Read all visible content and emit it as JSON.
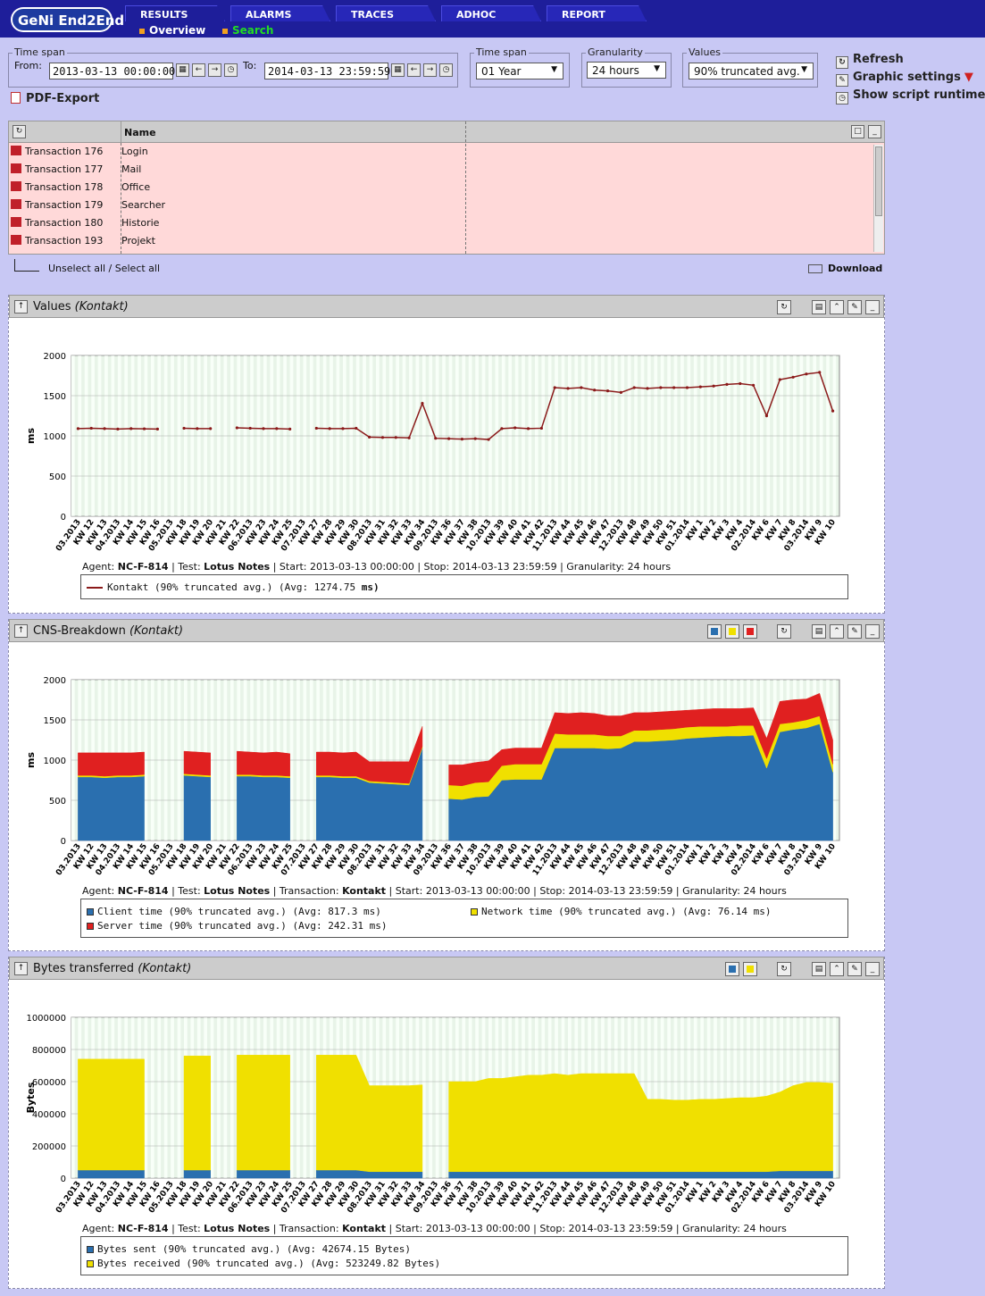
{
  "app": {
    "logo": "GeNi End2End"
  },
  "tabs": [
    {
      "label": "RESULTS",
      "active": true
    },
    {
      "label": "ALARMS"
    },
    {
      "label": "TRACES"
    },
    {
      "label": "ADHOC"
    },
    {
      "label": "REPORT"
    }
  ],
  "subnav": {
    "overview": "Overview",
    "search": "Search"
  },
  "filters": {
    "timespan_legend": "Time span",
    "from_label": "From:",
    "from_value": "2013-03-13 00:00:00",
    "to_label": "To:",
    "to_value": "2014-03-13 23:59:59",
    "timespan2_legend": "Time span",
    "timespan2_value": "01 Year",
    "granularity_legend": "Granularity",
    "granularity_value": "24 hours",
    "values_legend": "Values",
    "values_value": "90% truncated avg."
  },
  "actions": {
    "refresh": "Refresh",
    "graphic_settings": "Graphic settings",
    "show_runtime": "Show script runtime",
    "pdf_export": "PDF-Export"
  },
  "transactions": {
    "header_name": "Name",
    "rows": [
      {
        "id": "Transaction 176",
        "name": "Login"
      },
      {
        "id": "Transaction 177",
        "name": "Mail"
      },
      {
        "id": "Transaction 178",
        "name": "Office"
      },
      {
        "id": "Transaction 179",
        "name": "Searcher"
      },
      {
        "id": "Transaction 180",
        "name": "Historie"
      },
      {
        "id": "Transaction 193",
        "name": "Projekt"
      }
    ],
    "select_all": "Unselect all / Select all",
    "download": "Download"
  },
  "panels": {
    "values": {
      "title": "Values",
      "subtitle": "(Kontakt)"
    },
    "cns": {
      "title": "CNS-Breakdown",
      "subtitle": "(Kontakt)"
    },
    "bytes": {
      "title": "Bytes transferred",
      "subtitle": "(Kontakt)"
    }
  },
  "info": {
    "agent_label": "Agent:",
    "agent": "NC-F-814",
    "test_label": "| Test:",
    "test": "Lotus Notes",
    "tx_label": "| Transaction:",
    "tx": "Kontakt",
    "start_label": "| Start:",
    "start": "2013-03-13 00:00:00",
    "stop_label": "| Stop:",
    "stop": "2014-03-13 23:59:59",
    "gran_label": "| Granularity:",
    "gran": "24 hours"
  },
  "legends": {
    "values": [
      {
        "text": "Kontakt (90% truncated avg.) (Avg: 1274.75",
        "unit": "ms)",
        "color": "#8b1a1a"
      }
    ],
    "cns": [
      {
        "text": "Client time (90% truncated avg.) (Avg: 817.3 ms)",
        "color": "#2a6faf"
      },
      {
        "text": "Network time (90% truncated avg.) (Avg: 76.14 ms)",
        "color": "#f0e000"
      },
      {
        "text": "Server time (90% truncated avg.) (Avg: 242.31 ms)",
        "color": "#e02020"
      }
    ],
    "bytes": [
      {
        "text": "Bytes sent (90% truncated avg.) (Avg: 42674.15 Bytes)",
        "color": "#2a6faf"
      },
      {
        "text": "Bytes received (90% truncated avg.) (Avg: 523249.82 Bytes)",
        "color": "#f0e000"
      }
    ]
  },
  "chart_data": [
    {
      "type": "line",
      "ylabel": "ms",
      "ylim": [
        0,
        2000
      ],
      "yticks": [
        "0",
        "500",
        "1000",
        "1500",
        "2000"
      ],
      "xticks": [
        "03.2013",
        "KW 12",
        "KW 13",
        "04.2013",
        "KW 14",
        "KW 15",
        "KW 16",
        "05.2013",
        "KW 18",
        "KW 19",
        "KW 20",
        "KW 21",
        "KW 22",
        "06.2013",
        "KW 23",
        "KW 24",
        "KW 25",
        "07.2013",
        "KW 27",
        "KW 28",
        "KW 29",
        "KW 30",
        "08.2013",
        "KW 31",
        "KW 32",
        "KW 33",
        "KW 34",
        "09.2013",
        "KW 36",
        "KW 37",
        "KW 38",
        "10.2013",
        "KW 39",
        "KW 40",
        "KW 41",
        "KW 42",
        "11.2013",
        "KW 44",
        "KW 45",
        "KW 46",
        "KW 47",
        "12.2013",
        "KW 48",
        "KW 49",
        "KW 50",
        "KW 51",
        "01.2014",
        "KW 1",
        "KW 2",
        "KW 3",
        "KW 4",
        "02.2014",
        "KW 6",
        "KW 7",
        "KW 8",
        "03.2014",
        "KW 9",
        "KW 10"
      ],
      "series": [
        {
          "name": "Kontakt",
          "color": "#8b1a1a",
          "values": [
            1090,
            1095,
            1090,
            1085,
            1090,
            1088,
            1085,
            null,
            1095,
            1090,
            1090,
            null,
            1100,
            1095,
            1090,
            1090,
            1085,
            null,
            1095,
            1090,
            1090,
            1095,
            985,
            980,
            980,
            975,
            1405,
            970,
            965,
            960,
            965,
            955,
            1090,
            1100,
            1090,
            1095,
            1600,
            1590,
            1600,
            1570,
            1560,
            1540,
            1600,
            1590,
            1600,
            1600,
            1600,
            1610,
            1620,
            1640,
            1650,
            1630,
            1250,
            1700,
            1730,
            1770,
            1790,
            1310
          ]
        }
      ]
    },
    {
      "type": "area",
      "ylabel": "ms",
      "ylim": [
        0,
        2000
      ],
      "yticks": [
        "0",
        "500",
        "1000",
        "1500",
        "2000"
      ],
      "series": [
        {
          "name": "Client time",
          "color": "#2a6faf",
          "values": [
            790,
            790,
            780,
            790,
            790,
            800,
            null,
            null,
            810,
            800,
            790,
            null,
            800,
            800,
            790,
            790,
            780,
            null,
            790,
            790,
            780,
            780,
            720,
            710,
            700,
            690,
            1150,
            null,
            520,
            510,
            540,
            550,
            750,
            760,
            760,
            760,
            1150,
            1150,
            1150,
            1150,
            1140,
            1150,
            1230,
            1230,
            1240,
            1250,
            1270,
            1280,
            1290,
            1300,
            1300,
            1310,
            900,
            1350,
            1380,
            1400,
            1450,
            850
          ]
        },
        {
          "name": "Network time",
          "color": "#f0e000",
          "values": [
            20,
            20,
            20,
            20,
            20,
            20,
            null,
            null,
            20,
            20,
            20,
            null,
            20,
            20,
            20,
            20,
            20,
            null,
            20,
            20,
            20,
            20,
            20,
            20,
            20,
            20,
            20,
            null,
            170,
            170,
            180,
            180,
            180,
            190,
            190,
            190,
            180,
            170,
            170,
            170,
            160,
            150,
            140,
            140,
            140,
            140,
            140,
            140,
            130,
            120,
            130,
            120,
            120,
            100,
            90,
            100,
            100,
            100
          ]
        },
        {
          "name": "Server time",
          "color": "#e02020",
          "values": [
            280,
            280,
            290,
            280,
            280,
            280,
            null,
            null,
            280,
            280,
            280,
            null,
            290,
            280,
            280,
            290,
            280,
            null,
            290,
            290,
            290,
            300,
            240,
            250,
            260,
            270,
            250,
            null,
            250,
            260,
            250,
            260,
            200,
            200,
            200,
            200,
            260,
            260,
            270,
            260,
            250,
            250,
            220,
            220,
            220,
            220,
            210,
            210,
            220,
            220,
            210,
            220,
            250,
            280,
            280,
            260,
            280,
            300
          ]
        }
      ]
    },
    {
      "type": "area",
      "ylabel": "Bytes",
      "ylim": [
        0,
        1000000
      ],
      "yticks": [
        "0",
        "200000",
        "400000",
        "600000",
        "800000",
        "1000000"
      ],
      "series": [
        {
          "name": "Bytes sent",
          "color": "#2a6faf",
          "values": [
            50000,
            50000,
            50000,
            50000,
            50000,
            50000,
            null,
            null,
            50000,
            50000,
            50000,
            null,
            50000,
            50000,
            50000,
            50000,
            50000,
            null,
            50000,
            50000,
            50000,
            50000,
            40000,
            40000,
            40000,
            40000,
            40000,
            null,
            40000,
            40000,
            40000,
            40000,
            40000,
            40000,
            40000,
            40000,
            40000,
            40000,
            40000,
            40000,
            40000,
            40000,
            40000,
            40000,
            40000,
            40000,
            40000,
            40000,
            40000,
            40000,
            40000,
            40000,
            40000,
            45000,
            45000,
            45000,
            45000,
            45000
          ]
        },
        {
          "name": "Bytes received",
          "color": "#f0e000",
          "values": [
            690000,
            690000,
            690000,
            690000,
            690000,
            690000,
            null,
            null,
            710000,
            710000,
            710000,
            null,
            715000,
            715000,
            715000,
            715000,
            715000,
            null,
            715000,
            715000,
            715000,
            715000,
            535000,
            535000,
            535000,
            535000,
            540000,
            null,
            560000,
            560000,
            560000,
            580000,
            580000,
            590000,
            600000,
            600000,
            610000,
            600000,
            610000,
            610000,
            610000,
            610000,
            610000,
            450000,
            450000,
            445000,
            445000,
            450000,
            450000,
            455000,
            460000,
            460000,
            470000,
            490000,
            530000,
            550000,
            550000,
            545000
          ]
        }
      ]
    }
  ]
}
